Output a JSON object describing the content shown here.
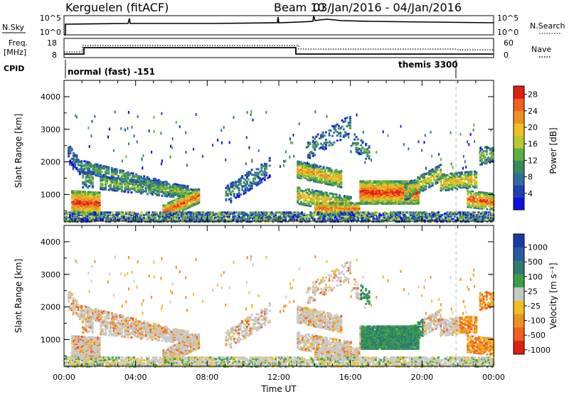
{
  "header": {
    "station": "Kerguelen (fitACF)",
    "beam": "Beam 10",
    "date_range": "03/Jan/2016 - 04/Jan/2016"
  },
  "nsky_panel": {
    "label": "N.Sky",
    "right_label": "N.Search",
    "ticks": [
      "10^5",
      "10^0"
    ]
  },
  "freq_panel": {
    "label_line1": "Freq.",
    "label_line2": "[MHz]",
    "left_ticks": [
      "18",
      "8"
    ],
    "right_ticks": [
      "60",
      "0"
    ],
    "right_label": "Nave"
  },
  "cpid_panel": {
    "label": "CPID",
    "mode_left": "normal (fast) -151",
    "mode_right": "themis 3300"
  },
  "chart_data": [
    {
      "type": "heatmap",
      "ylabel": "Slant Range [km]",
      "y_ticks": [
        "1000",
        "2000",
        "3000",
        "4000"
      ],
      "x_ticks": [
        "00:00",
        "04:00",
        "08:00",
        "12:00",
        "16:00",
        "20:00",
        "00:00"
      ],
      "colorbar_label": "Power [dB]",
      "colorbar_ticks": [
        "4",
        "8",
        "12",
        "16",
        "20",
        "24",
        "28"
      ],
      "colorbar_colors": [
        "#1010e0",
        "#2040b0",
        "#2f6f9f",
        "#3a8a5a",
        "#60b040",
        "#b8c830",
        "#f0c020",
        "#f09020",
        "#f06020",
        "#e02010"
      ]
    },
    {
      "type": "heatmap",
      "ylabel": "Slant Range [km]",
      "y_ticks": [
        "1000",
        "2000",
        "3000",
        "4000"
      ],
      "x_ticks": [
        "00:00",
        "04:00",
        "08:00",
        "12:00",
        "16:00",
        "20:00",
        "00:00"
      ],
      "xlabel": "Time UT",
      "colorbar_label": "Velocity [m s⁻¹]",
      "colorbar_ticks": [
        "1000",
        "500",
        "100",
        "25",
        "-25",
        "-100",
        "-500",
        "-1000"
      ],
      "colorbar_colors": [
        "#1a3aa8",
        "#2a5aa0",
        "#2f7a70",
        "#3aa048",
        "#c8c8c8",
        "#f0c020",
        "#f09020",
        "#f06020",
        "#e02010"
      ]
    }
  ]
}
